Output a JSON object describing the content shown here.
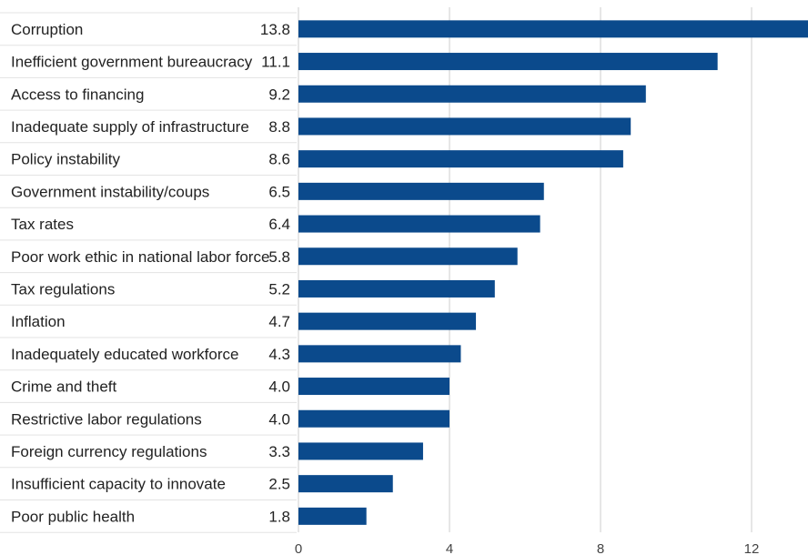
{
  "chart_data": {
    "type": "bar",
    "orientation": "horizontal",
    "categories": [
      "Corruption",
      "Inefficient government bureaucracy",
      "Access to financing",
      "Inadequate supply of infrastructure",
      "Policy instability",
      "Government instability/coups",
      "Tax rates",
      "Poor work ethic in national labor force",
      "Tax regulations",
      "Inflation",
      "Inadequately educated workforce",
      "Crime and theft",
      "Restrictive labor regulations",
      "Foreign currency regulations",
      "Insufficient capacity to innovate",
      "Poor public health"
    ],
    "values": [
      13.8,
      11.1,
      9.2,
      8.8,
      8.6,
      6.5,
      6.4,
      5.8,
      5.2,
      4.7,
      4.3,
      4.0,
      4.0,
      3.3,
      2.5,
      1.8
    ],
    "value_labels": [
      "13.8",
      "11.1",
      "9.2",
      "8.8",
      "8.6",
      "6.5",
      "6.4",
      "5.8",
      "5.2",
      "4.7",
      "4.3",
      "4.0",
      "4.0",
      "3.3",
      "2.5",
      "1.8"
    ],
    "x_ticks": [
      0,
      4,
      8,
      12
    ],
    "x_tick_labels": [
      "0",
      "4",
      "8",
      "12"
    ],
    "xlim": [
      0,
      13.5
    ],
    "grid": true,
    "bar_color": "#0b4a8c",
    "grid_color": "#cccccc",
    "row_separator_color": "#e3e3e3"
  }
}
